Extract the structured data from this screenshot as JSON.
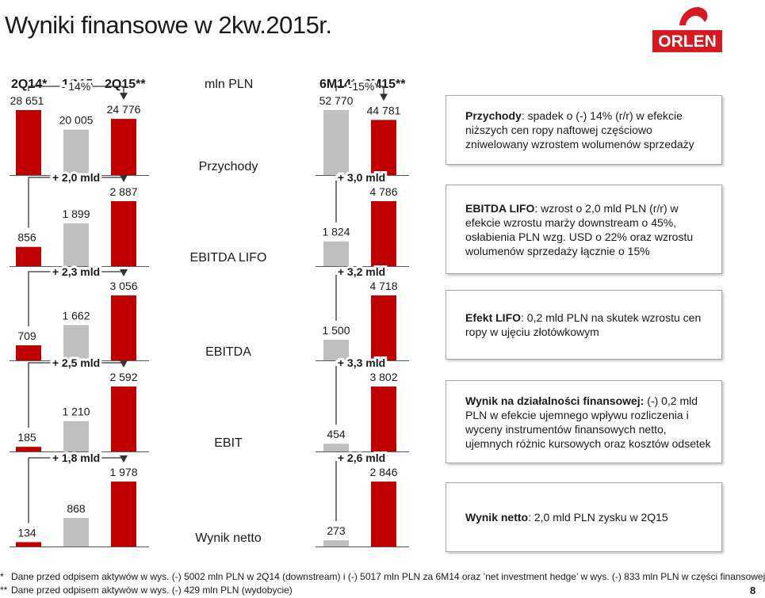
{
  "title": "Wyniki finansowe w 2kw.2015r.",
  "logo": {
    "text": "ORLEN",
    "brand_color": "#d71920"
  },
  "headers": {
    "quarterly": [
      "2Q14*",
      "1Q15",
      "2Q15**"
    ],
    "unit": "mln PLN",
    "half_year": [
      "6M14*",
      "6M15**"
    ]
  },
  "colors": {
    "highlight": "#c00000",
    "neutral": "#bfbfbf",
    "axis": "#595959"
  },
  "chart_data": [
    {
      "type": "bar",
      "metric": "Przychody",
      "quarterly": {
        "categories": [
          "2Q14*",
          "1Q15",
          "2Q15**"
        ],
        "values": [
          28651,
          20005,
          24776
        ],
        "labels": [
          "28 651",
          "20 005",
          "24 776"
        ],
        "change": "- 14%"
      },
      "half_year": {
        "categories": [
          "6M14*",
          "6M15**"
        ],
        "values": [
          52770,
          44781
        ],
        "labels": [
          "52 770",
          "44 781"
        ],
        "change": "-15%"
      }
    },
    {
      "type": "bar",
      "metric": "EBITDA LIFO",
      "quarterly": {
        "categories": [
          "2Q14*",
          "1Q15",
          "2Q15**"
        ],
        "values": [
          856,
          1899,
          2887
        ],
        "labels": [
          "856",
          "1 899",
          "2 887"
        ],
        "change": "+ 2,0 mld"
      },
      "half_year": {
        "categories": [
          "6M14*",
          "6M15**"
        ],
        "values": [
          1824,
          4786
        ],
        "labels": [
          "1 824",
          "4 786"
        ],
        "change": "+ 3,0 mld"
      }
    },
    {
      "type": "bar",
      "metric": "EBITDA",
      "quarterly": {
        "categories": [
          "2Q14*",
          "1Q15",
          "2Q15**"
        ],
        "values": [
          709,
          1662,
          3056
        ],
        "labels": [
          "709",
          "1 662",
          "3 056"
        ],
        "change": "+ 2,3 mld"
      },
      "half_year": {
        "categories": [
          "6M14*",
          "6M15**"
        ],
        "values": [
          1500,
          4718
        ],
        "labels": [
          "1 500",
          "4 718"
        ],
        "change": "+ 3,2 mld"
      }
    },
    {
      "type": "bar",
      "metric": "EBIT",
      "quarterly": {
        "categories": [
          "2Q14*",
          "1Q15",
          "2Q15**"
        ],
        "values": [
          185,
          1210,
          2592
        ],
        "labels": [
          "185",
          "1 210",
          "2 592"
        ],
        "change": "+ 2,5 mld"
      },
      "half_year": {
        "categories": [
          "6M14*",
          "6M15**"
        ],
        "values": [
          454,
          3802
        ],
        "labels": [
          "454",
          "3 802"
        ],
        "change": "+ 3,3 mld"
      }
    },
    {
      "type": "bar",
      "metric": "Wynik netto",
      "quarterly": {
        "categories": [
          "2Q14*",
          "1Q15",
          "2Q15**"
        ],
        "values": [
          134,
          868,
          1978
        ],
        "labels": [
          "134",
          "868",
          "1 978"
        ],
        "change": "+ 1,8 mld"
      },
      "half_year": {
        "categories": [
          "6M14*",
          "6M15**"
        ],
        "values": [
          273,
          2846
        ],
        "labels": [
          "273",
          "2 846"
        ],
        "change": "+ 2,6 mld"
      }
    }
  ],
  "commentary": [
    {
      "bold": "Przychody",
      "text": ": spadek o (-) 14% (r/r) w efekcie niższych cen ropy naftowej częściowo zniwelowany wzrostem wolumenów sprzedaży"
    },
    {
      "bold": "EBITDA LIFO",
      "text": ": wzrost o 2,0 mld PLN (r/r) w efekcie wzrostu marży downstream o 45%, osłabienia PLN wzg. USD o 22% oraz wzrostu wolumenów sprzedaży łącznie o 15%"
    },
    {
      "bold": "Efekt LIFO",
      "text": ": 0,2 mld PLN na skutek wzrostu cen ropy w ujęciu złotówkowym"
    },
    {
      "bold": "Wynik na działalności finansowej:",
      "text": " (-) 0,2 mld PLN w efekcie ujemnego wpływu rozliczenia i wyceny instrumentów finansowych netto, ujemnych różnic kursowych oraz kosztów odsetek"
    },
    {
      "bold": "Wynik netto",
      "text": ": 2,0 mld PLN zysku w 2Q15"
    }
  ],
  "footnotes": [
    {
      "mark": "*",
      "text": "Dane przed odpisem aktywów w wys. (-) 5002 mln PLN w 2Q14 (downstream) i (-) 5017 mln PLN za 6M14 oraz ’net investment hedge’ w wys. (-) 833 mln PLN w części finansowej"
    },
    {
      "mark": "**",
      "text": "Dane przed odpisem aktywów w wys. (-) 429 mln PLN (wydobycie)"
    }
  ],
  "page_number": "8"
}
